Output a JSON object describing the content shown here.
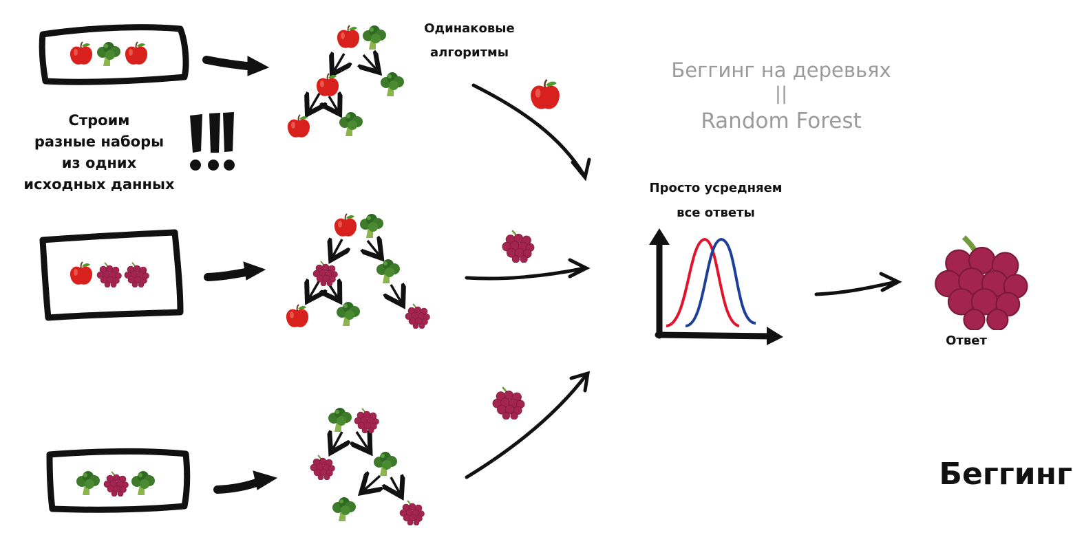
{
  "texts": {
    "identical_algorithms": "Одинаковые\nалгоритмы",
    "build_sets": "Строим\nразные наборы\nиз одних\nисходных данных",
    "exclaim": "!!!",
    "bagging_trees_line1": "Беггинг на деревьях",
    "bagging_trees_line2": "||",
    "bagging_trees_line3": "Random Forest",
    "averaging": "Просто усредняем\nвсе ответы",
    "answer": "Ответ",
    "title": "Беггинг"
  },
  "icons": {
    "apple": "red-apple-icon",
    "broccoli": "broccoli-icon",
    "grapes": "grapes-icon"
  },
  "datasets": [
    {
      "items": [
        "apple",
        "broccoli",
        "apple"
      ]
    },
    {
      "items": [
        "apple",
        "grapes",
        "grapes"
      ]
    },
    {
      "items": [
        "broccoli",
        "grapes",
        "broccoli"
      ]
    }
  ],
  "trees": [
    {
      "root": [
        "apple",
        "broccoli"
      ],
      "left": "apple",
      "right": "broccoli",
      "leaves": [
        "apple",
        "broccoli"
      ]
    },
    {
      "root": [
        "apple",
        "broccoli"
      ],
      "left": "grapes",
      "right": "broccoli",
      "leaves": [
        "apple",
        "broccoli",
        "grapes"
      ]
    },
    {
      "root": [
        "broccoli",
        "grapes"
      ],
      "left": "grapes",
      "right": "broccoli",
      "leaves": [
        "broccoli",
        "grapes"
      ]
    }
  ],
  "predictions": [
    "apple",
    "grapes",
    "grapes"
  ],
  "final_answer": "grapes",
  "colors": {
    "ink": "#111111",
    "gray_text": "#9a9a9a",
    "curve_red": "#e0142a",
    "curve_blue": "#1d3f9a",
    "apple_red": "#d8211c",
    "broccoli_green": "#3d7a2a",
    "grape_purple": "#a3244f"
  }
}
